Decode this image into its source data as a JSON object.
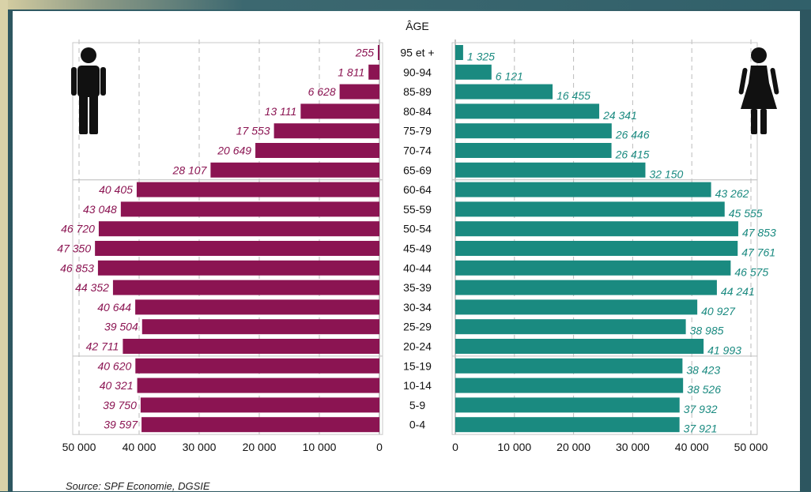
{
  "chart_data": {
    "type": "bar",
    "subtype": "population-pyramid",
    "axis_title": "ÂGE",
    "categories": [
      "95 et +",
      "90-94",
      "85-89",
      "80-84",
      "75-79",
      "70-74",
      "65-69",
      "60-64",
      "55-59",
      "50-54",
      "45-49",
      "40-44",
      "35-39",
      "30-34",
      "25-29",
      "20-24",
      "15-19",
      "10-14",
      "5-9",
      "0-4"
    ],
    "series": [
      {
        "side": "left",
        "color": "#8b1452",
        "icon": "male-icon",
        "values": [
          255,
          1811,
          6628,
          13111,
          17553,
          20649,
          28107,
          40405,
          43048,
          46720,
          47350,
          46853,
          44352,
          40644,
          39504,
          42711,
          40620,
          40321,
          39750,
          39597
        ],
        "labels": [
          "255",
          "1 811",
          "6 628",
          "13 111",
          "17 553",
          "20 649",
          "28 107",
          "40 405",
          "43 048",
          "46 720",
          "47 350",
          "46 853",
          "44 352",
          "40 644",
          "39 504",
          "42 711",
          "40 620",
          "40 321",
          "39 750",
          "39 597"
        ]
      },
      {
        "side": "right",
        "color": "#1a8a80",
        "icon": "female-icon",
        "values": [
          1325,
          6121,
          16455,
          24341,
          26446,
          26415,
          32150,
          43262,
          45555,
          47853,
          47761,
          46575,
          44241,
          40927,
          38985,
          41993,
          38423,
          38526,
          37932,
          37921
        ],
        "labels": [
          "1 325",
          "6 121",
          "16 455",
          "24 341",
          "26 446",
          "26 415",
          "32 150",
          "43 262",
          "45 555",
          "47 853",
          "47 761",
          "46 575",
          "44 241",
          "40 927",
          "38 985",
          "41 993",
          "38 423",
          "38 526",
          "37 932",
          "37 921"
        ]
      }
    ],
    "xlim": [
      0,
      50000
    ],
    "xticks": [
      0,
      10000,
      20000,
      30000,
      40000,
      50000
    ],
    "left_tick_labels": [
      "50 000",
      "40 000",
      "30 000",
      "20 000",
      "10 000",
      "0"
    ],
    "right_tick_labels": [
      "0",
      "10 000",
      "20 000",
      "30 000",
      "40 000",
      "50 000"
    ],
    "grid": "vertical dashed",
    "group_boxes": [
      "65-69 to 95 et +",
      "20-24 to 60-64",
      "0-4 to 15-19"
    ]
  },
  "source": "Source: SPF Economie, DGSIE",
  "colors": {
    "male": "#8b1452",
    "female": "#1a8a80",
    "frame": "#2f5a63"
  }
}
